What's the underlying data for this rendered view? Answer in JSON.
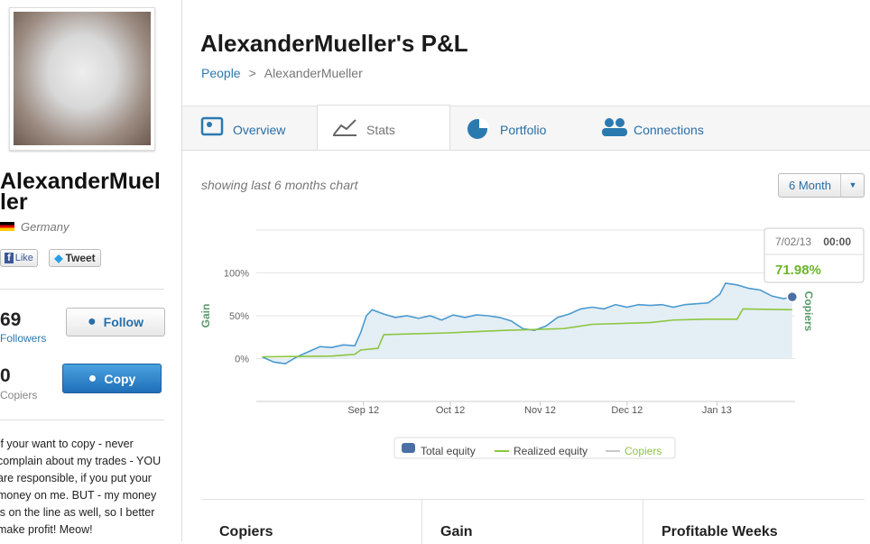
{
  "profile": {
    "name": "AlexanderMueller",
    "country": "Germany",
    "like": "Like",
    "tweet": "Tweet",
    "followers": 69,
    "followers_label": "Followers",
    "follow": "Follow",
    "copiers": 0,
    "copiers_label": "Copiers",
    "copy": "Copy",
    "bio": "If your want to copy - never complain about my trades - YOU are responsible, if you put your money on me. BUT - my money is on the line as well, so I better make profit! Meow!"
  },
  "header": {
    "title": "AlexanderMueller's P&L",
    "breadcrumb": [
      "People",
      ">",
      "AlexanderMueller"
    ]
  },
  "tabs": [
    "Overview",
    "Stats",
    "Portfolio",
    "Connections"
  ],
  "chart_caption": "showing last 6 months chart",
  "range_button": "6 Month",
  "chart_data": {
    "type": "line",
    "y_label": "Gain",
    "y2_label": "Copiers",
    "xlim": [
      -26,
      160
    ],
    "xticks": [
      {
        "value": 11,
        "label": "Sep 12"
      },
      {
        "value": 41,
        "label": "Oct 12"
      },
      {
        "value": 72,
        "label": "Nov 12"
      },
      {
        "value": 102,
        "label": "Dec 12"
      },
      {
        "value": 133,
        "label": "Jan 13"
      }
    ],
    "ylim": [
      -50,
      150
    ],
    "yticks": [
      {
        "value": 0,
        "label": "0%"
      },
      {
        "value": 50,
        "label": "50%"
      },
      {
        "value": 100,
        "label": "100%"
      }
    ],
    "grid": true,
    "series": [
      {
        "name": "Total equity",
        "color": "#4a9ad0",
        "area_color": "#e4eef5",
        "x": [
          -24,
          -20,
          -16,
          -12,
          -8,
          -4,
          0,
          4,
          8,
          10,
          12,
          14,
          18,
          22,
          26,
          30,
          34,
          38,
          42,
          46,
          50,
          54,
          58,
          62,
          66,
          70,
          74,
          78,
          82,
          86,
          90,
          94,
          98,
          102,
          106,
          110,
          114,
          118,
          122,
          126,
          130,
          134,
          136,
          140,
          144,
          148,
          152,
          156,
          159
        ],
        "values": [
          2,
          -4,
          -6,
          2,
          8,
          14,
          13,
          16,
          15,
          30,
          50,
          57,
          52,
          48,
          50,
          47,
          50,
          45,
          51,
          48,
          51,
          50,
          48,
          44,
          35,
          33,
          38,
          48,
          52,
          58,
          60,
          58,
          63,
          60,
          63,
          62,
          63,
          60,
          63,
          64,
          65,
          75,
          88,
          86,
          82,
          80,
          73,
          70,
          71.98
        ]
      },
      {
        "name": "Realized equity",
        "color": "#8cc63f",
        "x": [
          -24,
          0,
          8,
          10,
          16,
          18,
          40,
          60,
          80,
          90,
          110,
          118,
          130,
          140,
          142,
          159
        ],
        "values": [
          2,
          3,
          5,
          10,
          12,
          28,
          30,
          33,
          35,
          40,
          42,
          45,
          46,
          46,
          58,
          57
        ]
      },
      {
        "name": "Copiers",
        "color": "#c8c8c8",
        "axis": "y2",
        "x": [],
        "values": []
      }
    ],
    "tooltip": {
      "date": "7/02/13",
      "time": "00:00",
      "label": "71.98%"
    }
  },
  "stats": [
    "Copiers",
    "Gain",
    "Profitable Weeks"
  ]
}
